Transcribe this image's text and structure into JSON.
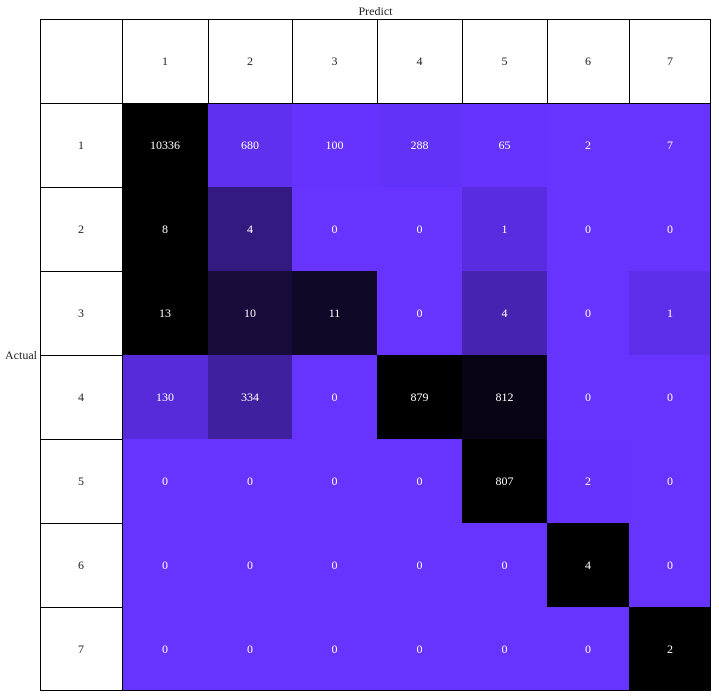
{
  "chart_data": {
    "type": "heatmap",
    "xlabel": "Predict",
    "ylabel": "Actual",
    "categories_x": [
      "1",
      "2",
      "3",
      "4",
      "5",
      "6",
      "7"
    ],
    "categories_y": [
      "1",
      "2",
      "3",
      "4",
      "5",
      "6",
      "7"
    ],
    "values": [
      [
        10336,
        680,
        100,
        288,
        65,
        2,
        7
      ],
      [
        8,
        4,
        0,
        0,
        1,
        0,
        0
      ],
      [
        13,
        10,
        11,
        0,
        4,
        0,
        1
      ],
      [
        130,
        334,
        0,
        879,
        812,
        0,
        0
      ],
      [
        0,
        0,
        0,
        0,
        807,
        2,
        0
      ],
      [
        0,
        0,
        0,
        0,
        0,
        4,
        0
      ],
      [
        0,
        0,
        0,
        0,
        0,
        0,
        2
      ]
    ],
    "color_low": "#6633ff",
    "color_high": "#000000",
    "header_cell_color": "#ffffff",
    "grid_line_color": "#000000"
  }
}
